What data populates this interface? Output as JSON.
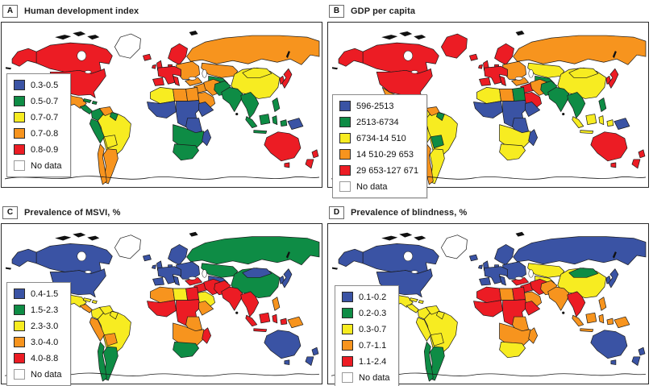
{
  "colors": {
    "blue": "#3A53A4",
    "green": "#0E8C45",
    "yellow": "#F7EC21",
    "orange": "#F7941E",
    "red": "#EC1C24",
    "nodata": "#FFFFFF"
  },
  "chart_data": [
    {
      "type": "choropleth",
      "panel": "A",
      "title": "Human development index",
      "legend": [
        {
          "label": "0.3-0.5",
          "color": "blue"
        },
        {
          "label": "0.5-0.7",
          "color": "green"
        },
        {
          "label": "0.7-0.7",
          "color": "yellow"
        },
        {
          "label": "0.7-0.8",
          "color": "orange"
        },
        {
          "label": "0.8-0.9",
          "color": "red"
        },
        {
          "label": "No data",
          "color": "nodata"
        }
      ],
      "regions": {
        "russia": "orange",
        "canada": "red",
        "greenland": "nodata",
        "alaska": "red",
        "usa": "red",
        "mexico": "orange",
        "central_america": "green",
        "caribbean": "green",
        "brazil": "yellow",
        "venezuela": "orange",
        "colombia": "green",
        "guyana": "green",
        "peru": "green",
        "bolivia": "yellow",
        "argentina": "orange",
        "chile": "orange",
        "iceland": "red",
        "uk": "red",
        "scandinavia": "red",
        "west_europe": "red",
        "east_europe": "orange",
        "kazakhstan": "orange",
        "central_asia": "green",
        "turkey": "orange",
        "middle_east": "orange",
        "iran": "orange",
        "saudi_arabia": "orange",
        "pakistan": "green",
        "north_africa_west": "yellow",
        "libya": "orange",
        "egypt": "orange",
        "west_africa": "blue",
        "central_africa": "blue",
        "horn_of_africa": "blue",
        "east_africa": "blue",
        "southern_africa": "green",
        "south_africa": "green",
        "madagascar": "blue",
        "india": "green",
        "china": "yellow",
        "mongolia": "yellow",
        "korea": "red",
        "japan": "red",
        "southeast_asia": "green",
        "indonesia": "green",
        "philippines": "green",
        "papua_new_guinea": "blue",
        "australia": "red",
        "new_zealand": "red"
      }
    },
    {
      "type": "choropleth",
      "panel": "B",
      "title": "GDP per capita",
      "legend": [
        {
          "label": "596-2513",
          "color": "blue"
        },
        {
          "label": "2513-6734",
          "color": "green"
        },
        {
          "label": "6734-14 510",
          "color": "yellow"
        },
        {
          "label": "14 510-29 653",
          "color": "orange"
        },
        {
          "label": "29 653-127 671",
          "color": "red"
        },
        {
          "label": "No data",
          "color": "nodata"
        }
      ],
      "regions": {
        "russia": "orange",
        "canada": "red",
        "greenland": "red",
        "alaska": "red",
        "usa": "red",
        "mexico": "orange",
        "central_america": "green",
        "caribbean": "green",
        "brazil": "yellow",
        "venezuela": "orange",
        "colombia": "yellow",
        "guyana": "green",
        "peru": "yellow",
        "bolivia": "green",
        "argentina": "yellow",
        "chile": "orange",
        "iceland": "red",
        "uk": "red",
        "scandinavia": "red",
        "west_europe": "red",
        "east_europe": "orange",
        "kazakhstan": "yellow",
        "central_asia": "green",
        "turkey": "orange",
        "middle_east": "red",
        "iran": "orange",
        "saudi_arabia": "red",
        "pakistan": "green",
        "north_africa_west": "yellow",
        "libya": "orange",
        "egypt": "green",
        "west_africa": "blue",
        "central_africa": "blue",
        "horn_of_africa": "blue",
        "east_africa": "blue",
        "southern_africa": "yellow",
        "south_africa": "yellow",
        "madagascar": "blue",
        "india": "green",
        "china": "yellow",
        "mongolia": "yellow",
        "korea": "red",
        "japan": "red",
        "southeast_asia": "green",
        "indonesia": "yellow",
        "philippines": "green",
        "papua_new_guinea": "blue",
        "australia": "red",
        "new_zealand": "red"
      }
    },
    {
      "type": "choropleth",
      "panel": "C",
      "title": "Prevalence of MSVI, %",
      "legend": [
        {
          "label": "0.4-1.5",
          "color": "blue"
        },
        {
          "label": "1.5-2.3",
          "color": "green"
        },
        {
          "label": "2.3-3.0",
          "color": "yellow"
        },
        {
          "label": "3.0-4.0",
          "color": "orange"
        },
        {
          "label": "4.0-8.8",
          "color": "red"
        },
        {
          "label": "No data",
          "color": "nodata"
        }
      ],
      "regions": {
        "russia": "green",
        "canada": "blue",
        "greenland": "nodata",
        "alaska": "blue",
        "usa": "blue",
        "mexico": "yellow",
        "central_america": "orange",
        "caribbean": "yellow",
        "brazil": "yellow",
        "venezuela": "yellow",
        "colombia": "yellow",
        "guyana": "yellow",
        "peru": "orange",
        "bolivia": "orange",
        "argentina": "green",
        "chile": "green",
        "iceland": "blue",
        "uk": "blue",
        "scandinavia": "blue",
        "west_europe": "blue",
        "east_europe": "blue",
        "kazakhstan": "green",
        "central_asia": "blue",
        "turkey": "red",
        "middle_east": "red",
        "iran": "red",
        "saudi_arabia": "yellow",
        "pakistan": "red",
        "north_africa_west": "orange",
        "libya": "yellow",
        "egypt": "red",
        "west_africa": "red",
        "central_africa": "red",
        "horn_of_africa": "orange",
        "east_africa": "orange",
        "southern_africa": "orange",
        "south_africa": "green",
        "madagascar": "red",
        "india": "red",
        "china": "green",
        "mongolia": "blue",
        "korea": "blue",
        "japan": "blue",
        "southeast_asia": "red",
        "indonesia": "red",
        "philippines": "orange",
        "papua_new_guinea": "orange",
        "australia": "blue",
        "new_zealand": "blue"
      }
    },
    {
      "type": "choropleth",
      "panel": "D",
      "title": "Prevalence of blindness, %",
      "legend": [
        {
          "label": "0.1-0.2",
          "color": "blue"
        },
        {
          "label": "0.2-0.3",
          "color": "green"
        },
        {
          "label": "0.3-0.7",
          "color": "yellow"
        },
        {
          "label": "0.7-1.1",
          "color": "orange"
        },
        {
          "label": "1.1-2.4",
          "color": "red"
        },
        {
          "label": "No data",
          "color": "nodata"
        }
      ],
      "regions": {
        "russia": "blue",
        "canada": "blue",
        "greenland": "nodata",
        "alaska": "blue",
        "usa": "blue",
        "mexico": "yellow",
        "central_america": "yellow",
        "caribbean": "yellow",
        "brazil": "yellow",
        "venezuela": "yellow",
        "colombia": "yellow",
        "guyana": "yellow",
        "peru": "yellow",
        "bolivia": "yellow",
        "argentina": "green",
        "chile": "green",
        "iceland": "blue",
        "uk": "blue",
        "scandinavia": "blue",
        "west_europe": "blue",
        "east_europe": "blue",
        "kazakhstan": "yellow",
        "central_asia": "yellow",
        "turkey": "red",
        "middle_east": "red",
        "iran": "red",
        "saudi_arabia": "orange",
        "pakistan": "orange",
        "north_africa_west": "red",
        "libya": "orange",
        "egypt": "red",
        "west_africa": "red",
        "central_africa": "red",
        "horn_of_africa": "red",
        "east_africa": "orange",
        "southern_africa": "orange",
        "south_africa": "yellow",
        "madagascar": "orange",
        "india": "orange",
        "china": "yellow",
        "mongolia": "green",
        "korea": "blue",
        "japan": "blue",
        "southeast_asia": "red",
        "indonesia": "orange",
        "philippines": "orange",
        "papua_new_guinea": "orange",
        "australia": "blue",
        "new_zealand": "blue"
      }
    }
  ]
}
